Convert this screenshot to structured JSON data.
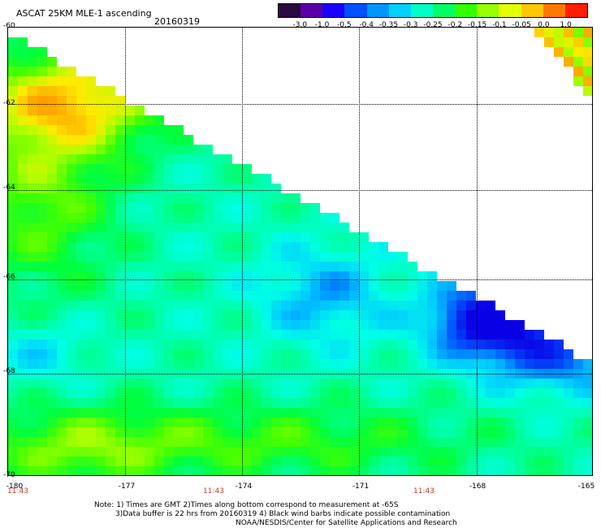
{
  "header": {
    "title": "ASCAT 25KM MLE-1 ascending",
    "date": "20160319"
  },
  "colorbar": {
    "labels": [
      "-3.0",
      "-1.0",
      "-0.5",
      "-0.4",
      "-0.35",
      "-0.3",
      "-0.25",
      "-0.2",
      "-0.15",
      "-0.1",
      "-0.05",
      "0.0",
      "1.0"
    ],
    "colors": [
      "#2a0a3c",
      "#5a00a8",
      "#1a00ff",
      "#0050ff",
      "#0096ff",
      "#00d2ff",
      "#00ffc8",
      "#00ff64",
      "#32ff00",
      "#96ff00",
      "#e6ff00",
      "#ffc800",
      "#ff7800",
      "#ff1e00"
    ]
  },
  "map": {
    "lat_labels": [
      "-60",
      "-62",
      "-64",
      "-66",
      "-68",
      "-70"
    ],
    "lon_labels": [
      "-180",
      "-177",
      "-174",
      "-171",
      "-168",
      "-165"
    ],
    "time_labels": [
      "11:43",
      "11:43",
      "11:43"
    ]
  },
  "notes": {
    "line1": "Note: 1) Times are GMT 2)Times along bottom correspond to measurement at -65S",
    "line2": "3)Data buffer is 22 hrs from 20160319 4) Black wind barbs indicate possible contamination",
    "line3": "NOAA/NESDIS/Center for Satellite Applications and Research"
  }
}
